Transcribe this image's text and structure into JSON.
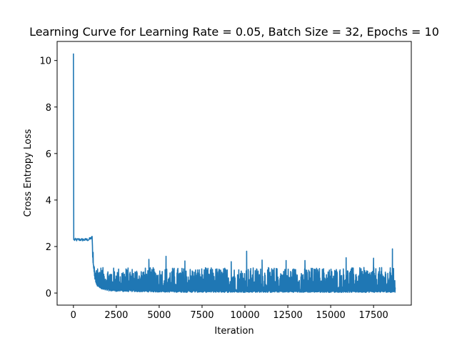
{
  "chart_data": {
    "type": "line",
    "title": "Learning Curve for Learning Rate = 0.05, Batch Size = 32, Epochs = 10",
    "xlabel": "Iteration",
    "ylabel": "Cross Entropy Loss",
    "xlim": [
      -950,
      19700
    ],
    "ylim": [
      -0.52,
      10.82
    ],
    "x_ticks": [
      0,
      2500,
      5000,
      7500,
      10000,
      12500,
      15000,
      17500
    ],
    "x_tick_labels": [
      "0",
      "2500",
      "5000",
      "7500",
      "10000",
      "12500",
      "15000",
      "17500"
    ],
    "y_ticks": [
      0,
      2,
      4,
      6,
      8,
      10
    ],
    "y_tick_labels": [
      "0",
      "2",
      "4",
      "6",
      "8",
      "10"
    ],
    "grid": false,
    "legend": "none",
    "color": "#1f77b4",
    "series": [
      {
        "x": [
          0,
          20,
          50,
          100,
          150,
          300,
          600,
          900,
          1100,
          1150,
          1250,
          1400,
          1700,
          2200,
          3000,
          5000,
          7500,
          10000,
          12500,
          15000,
          17500,
          18750
        ],
        "y": [
          10.3,
          2.3,
          2.28,
          2.3,
          2.28,
          2.3,
          2.29,
          2.3,
          2.4,
          1.5,
          0.8,
          0.5,
          0.35,
          0.3,
          0.28,
          0.26,
          0.25,
          0.25,
          0.25,
          0.25,
          0.25,
          0.25
        ],
        "noise_range": [
          0.01,
          1.2
        ],
        "spikes": [
          {
            "x": 1150,
            "y": 1.75
          },
          {
            "x": 4400,
            "y": 1.45
          },
          {
            "x": 5400,
            "y": 1.58
          },
          {
            "x": 6500,
            "y": 1.38
          },
          {
            "x": 9200,
            "y": 1.35
          },
          {
            "x": 10100,
            "y": 1.8
          },
          {
            "x": 11000,
            "y": 1.42
          },
          {
            "x": 12400,
            "y": 1.4
          },
          {
            "x": 13500,
            "y": 1.4
          },
          {
            "x": 15900,
            "y": 1.52
          },
          {
            "x": 17500,
            "y": 1.5
          },
          {
            "x": 18600,
            "y": 1.9
          }
        ]
      }
    ]
  }
}
